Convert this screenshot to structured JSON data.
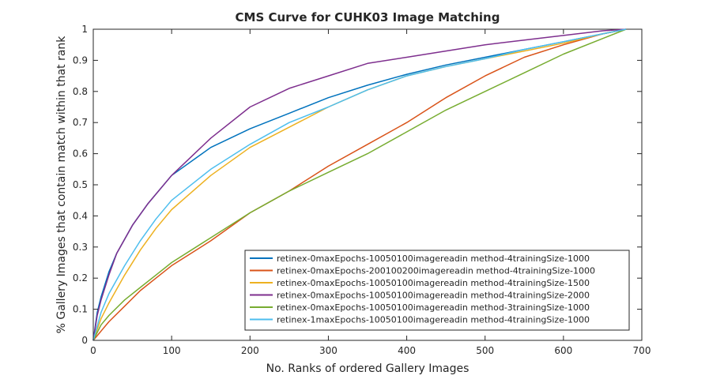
{
  "chart_data": {
    "type": "line",
    "title": "CMS Curve for CUHK03 Image Matching",
    "xlabel": "No. Ranks of ordered Gallery Images",
    "ylabel": "% Gallery Images that contain match within that rank",
    "xlim": [
      0,
      700
    ],
    "ylim": [
      0,
      1
    ],
    "xticks": [
      "0",
      "100",
      "200",
      "300",
      "400",
      "500",
      "600",
      "700"
    ],
    "yticks": [
      "0",
      "0.1",
      "0.2",
      "0.3",
      "0.4",
      "0.5",
      "0.6",
      "0.7",
      "0.8",
      "0.9",
      "1"
    ],
    "grid": false,
    "legend_position": "bottom-right",
    "series": [
      {
        "name": "retinex-0maxEpochs-10050100imagereadin method-4trainingSize-1000",
        "color": "#0072BD",
        "x": [
          0,
          5,
          10,
          20,
          30,
          50,
          70,
          100,
          150,
          200,
          250,
          300,
          350,
          400,
          450,
          500,
          550,
          600,
          650,
          680
        ],
        "y": [
          0,
          0.09,
          0.14,
          0.22,
          0.28,
          0.37,
          0.44,
          0.53,
          0.62,
          0.68,
          0.73,
          0.78,
          0.82,
          0.855,
          0.885,
          0.91,
          0.935,
          0.96,
          0.985,
          1.0
        ]
      },
      {
        "name": "retinex-0maxEpochs-200100200imagereadin method-4trainingSize-1000",
        "color": "#D95319",
        "x": [
          0,
          10,
          20,
          40,
          60,
          80,
          100,
          150,
          200,
          250,
          300,
          350,
          400,
          450,
          500,
          550,
          600,
          650,
          680
        ],
        "y": [
          0,
          0.03,
          0.06,
          0.11,
          0.16,
          0.2,
          0.24,
          0.32,
          0.41,
          0.48,
          0.56,
          0.63,
          0.7,
          0.78,
          0.85,
          0.91,
          0.95,
          0.985,
          1.0
        ]
      },
      {
        "name": "retinex-0maxEpochs-10050100imagereadin method-4trainingSize-1500",
        "color": "#EDB120",
        "x": [
          0,
          10,
          20,
          40,
          60,
          80,
          100,
          150,
          200,
          250,
          300,
          350,
          400,
          450,
          500,
          550,
          600,
          650,
          680
        ],
        "y": [
          0,
          0.07,
          0.12,
          0.21,
          0.29,
          0.36,
          0.42,
          0.53,
          0.62,
          0.685,
          0.75,
          0.805,
          0.85,
          0.88,
          0.905,
          0.93,
          0.955,
          0.985,
          1.0
        ]
      },
      {
        "name": "retinex-0maxEpochs-10050100imagereadin method-4trainingSize-2000",
        "color": "#7E2F8E",
        "x": [
          0,
          5,
          10,
          20,
          30,
          50,
          70,
          100,
          150,
          200,
          250,
          300,
          350,
          400,
          450,
          500,
          550,
          600,
          650,
          680
        ],
        "y": [
          0,
          0.08,
          0.13,
          0.21,
          0.28,
          0.37,
          0.44,
          0.53,
          0.65,
          0.75,
          0.81,
          0.85,
          0.89,
          0.91,
          0.93,
          0.95,
          0.965,
          0.98,
          0.995,
          1.0
        ]
      },
      {
        "name": "retinex-0maxEpochs-10050100imagereadin method-3trainingSize-1000",
        "color": "#77AC30",
        "x": [
          0,
          10,
          20,
          40,
          60,
          80,
          100,
          150,
          200,
          250,
          300,
          350,
          400,
          450,
          500,
          550,
          600,
          650,
          680
        ],
        "y": [
          0,
          0.05,
          0.08,
          0.13,
          0.17,
          0.21,
          0.25,
          0.33,
          0.41,
          0.48,
          0.54,
          0.6,
          0.67,
          0.74,
          0.8,
          0.86,
          0.92,
          0.97,
          1.0
        ]
      },
      {
        "name": "retinex-1maxEpochs-10050100imagereadin method-4trainingSize-1000",
        "color": "#4DBEEE",
        "x": [
          0,
          10,
          20,
          40,
          60,
          80,
          100,
          150,
          200,
          250,
          300,
          350,
          400,
          450,
          500,
          550,
          600,
          650,
          680
        ],
        "y": [
          0,
          0.09,
          0.15,
          0.24,
          0.32,
          0.39,
          0.45,
          0.55,
          0.63,
          0.7,
          0.75,
          0.805,
          0.85,
          0.88,
          0.905,
          0.935,
          0.96,
          0.985,
          1.0
        ]
      }
    ]
  }
}
